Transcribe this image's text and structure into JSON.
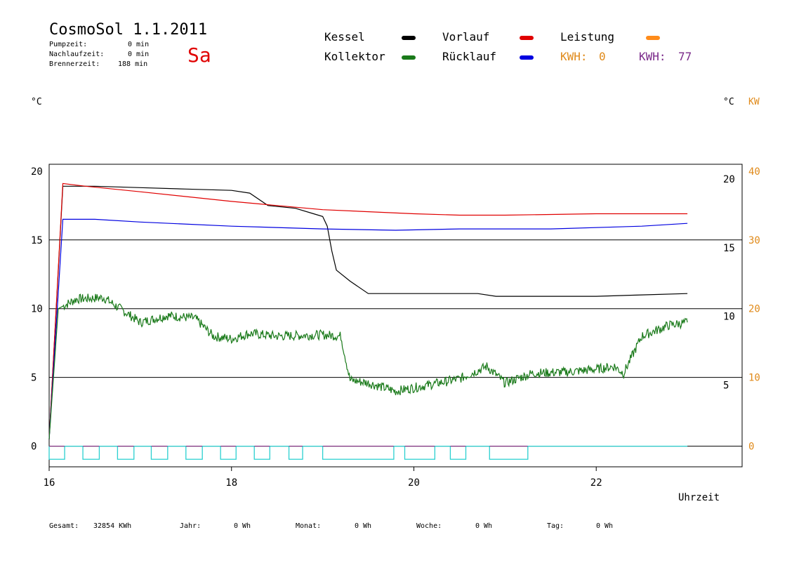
{
  "header": {
    "title": "CosmoSol 1.1.2011",
    "pumpzeit_label": "Pumpzeit:",
    "pumpzeit_value": "0 min",
    "nachlaufzeit_label": "Nachlaufzeit:",
    "nachlaufzeit_value": "0 min",
    "brennerzeit_label": "Brennerzeit:",
    "brennerzeit_value": "188 min",
    "weekday": "Sa"
  },
  "legend": {
    "kessel": "Kessel",
    "kollektor": "Kollektor",
    "vorlauf": "Vorlauf",
    "ruecklauf": "Rücklauf",
    "leistung": "Leistung",
    "kwh_label_1": "KWH:",
    "kwh_value_1": "0",
    "kwh_label_2": "KWH:",
    "kwh_value_2": "77"
  },
  "colors": {
    "kessel": "#000000",
    "kollektor": "#1a7a1a",
    "vorlauf": "#e00000",
    "ruecklauf": "#0000e0",
    "leistung": "#ff8c1a",
    "kwh_orange": "#e08a1a",
    "kwh_purple": "#7a2a8a",
    "pump": "#2ad0d0",
    "pump_purple": "#8a2a8a"
  },
  "axes": {
    "left_unit": "°C",
    "right_unit": "°C",
    "right2_unit": "KW",
    "left_ticks": [
      "20",
      "15",
      "10",
      "5",
      "0"
    ],
    "right_ticks": [
      "20",
      "15",
      "10",
      "5"
    ],
    "right2_ticks": [
      "40",
      "30",
      "20",
      "10",
      "0"
    ],
    "x_ticks": [
      "16",
      "18",
      "20",
      "22"
    ],
    "xlabel": "Uhrzeit"
  },
  "footer": {
    "gesamt_label": "Gesamt:",
    "gesamt_value": "32854 KWh",
    "jahr_label": "Jahr:",
    "jahr_value": "0 Wh",
    "monat_label": "Monat:",
    "monat_value": "0 Wh",
    "woche_label": "Woche:",
    "woche_value": "0 Wh",
    "tag_label": "Tag:",
    "tag_value": "0 Wh"
  },
  "chart_data": {
    "type": "line",
    "title": "CosmoSol 1.1.2011",
    "xlabel": "Uhrzeit",
    "ylabel": "°C",
    "xlim": [
      16,
      23.6
    ],
    "ylim": [
      -1.5,
      20.5
    ],
    "y2lim": [
      -3,
      41
    ],
    "series": [
      {
        "name": "Kessel",
        "axis": "left",
        "x": [
          16.0,
          16.15,
          16.5,
          17.0,
          17.5,
          18.0,
          18.2,
          18.4,
          18.7,
          18.9,
          19.0,
          19.05,
          19.1,
          19.15,
          19.3,
          19.5,
          19.7,
          20.0,
          20.5,
          20.7,
          20.9,
          21.5,
          22.0,
          22.5,
          23.0
        ],
        "y": [
          0.5,
          18.9,
          18.9,
          18.8,
          18.7,
          18.6,
          18.4,
          17.5,
          17.3,
          16.9,
          16.7,
          16.0,
          14.2,
          12.8,
          12.0,
          11.1,
          11.1,
          11.1,
          11.1,
          11.1,
          10.9,
          10.9,
          10.9,
          11.0,
          11.1
        ]
      },
      {
        "name": "Vorlauf",
        "axis": "left",
        "x": [
          16.0,
          16.15,
          16.4,
          17.0,
          18.0,
          19.0,
          20.0,
          20.5,
          21.0,
          22.0,
          23.0
        ],
        "y": [
          0.5,
          19.1,
          18.9,
          18.5,
          17.8,
          17.2,
          16.9,
          16.8,
          16.8,
          16.9,
          16.9
        ]
      },
      {
        "name": "Rücklauf",
        "axis": "left",
        "x": [
          16.0,
          16.15,
          16.5,
          17.0,
          18.0,
          19.0,
          19.8,
          20.5,
          21.5,
          22.5,
          23.0
        ],
        "y": [
          0.5,
          16.5,
          16.5,
          16.3,
          16.0,
          15.8,
          15.7,
          15.8,
          15.8,
          16.0,
          16.2
        ]
      },
      {
        "name": "Kollektor",
        "axis": "left",
        "x": [
          16.0,
          16.1,
          16.3,
          16.6,
          16.8,
          17.0,
          17.3,
          17.6,
          17.8,
          18.0,
          18.2,
          18.5,
          19.0,
          19.2,
          19.3,
          19.5,
          19.8,
          20.2,
          20.5,
          20.8,
          21.0,
          21.3,
          21.7,
          22.0,
          22.2,
          22.3,
          22.5,
          22.8,
          23.0
        ],
        "y": [
          0.5,
          10.0,
          10.7,
          10.8,
          9.9,
          9.0,
          9.5,
          9.3,
          8.0,
          7.8,
          8.2,
          8.0,
          8.1,
          8.0,
          4.8,
          4.6,
          4.0,
          4.5,
          4.9,
          5.8,
          4.6,
          5.3,
          5.4,
          5.6,
          5.8,
          5.3,
          8.0,
          8.8,
          9.0
        ]
      }
    ],
    "pump_on_intervals": [
      [
        16.0,
        16.17
      ],
      [
        16.37,
        16.55
      ],
      [
        16.75,
        16.93
      ],
      [
        17.12,
        17.3
      ],
      [
        17.5,
        17.68
      ],
      [
        17.88,
        18.05
      ],
      [
        18.25,
        18.42
      ],
      [
        18.63,
        18.78
      ],
      [
        19.0,
        19.78
      ],
      [
        19.9,
        20.23
      ],
      [
        20.4,
        20.57
      ],
      [
        20.83,
        21.25
      ]
    ],
    "grid": true,
    "legend_position": "top"
  }
}
